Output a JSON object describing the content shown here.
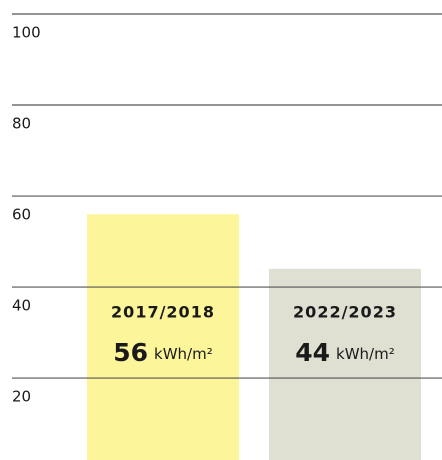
{
  "chart_data": {
    "type": "bar",
    "categories": [
      "2017/2018",
      "2022/2023"
    ],
    "values": [
      56,
      44
    ],
    "unit": "kWh/m²",
    "colors": [
      "#fdf59a",
      "#dfe0d2"
    ],
    "ylim": [
      2,
      100
    ],
    "yticks": [
      20,
      40,
      60,
      80,
      100
    ],
    "grid": true
  }
}
